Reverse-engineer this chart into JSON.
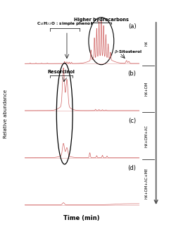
{
  "panels": [
    "(a)",
    "(b)",
    "(c)",
    "(d)"
  ],
  "right_labels": [
    "HX",
    "HX+DM",
    "HX+DM+AC",
    "HX+DM+AC+ME"
  ],
  "xlabel": "Time (min)",
  "ylabel": "Relative abundance",
  "line_color": "#d06060",
  "panel_label_fontsize": 6,
  "annotation_fontsize": 4.8,
  "small_annotation_fontsize": 4.2
}
